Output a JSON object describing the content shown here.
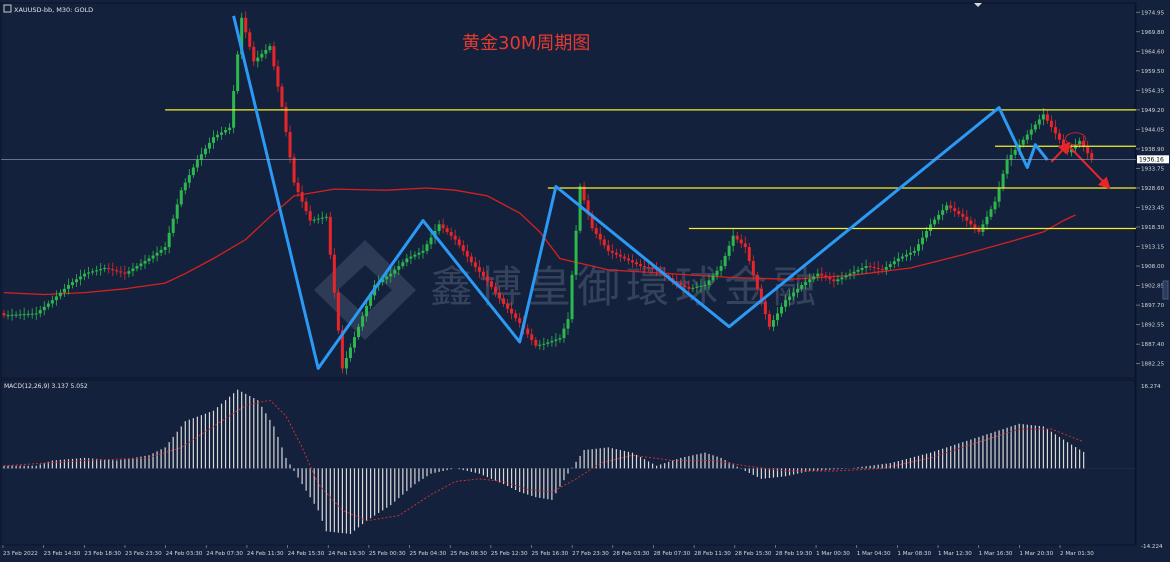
{
  "header": {
    "symbol": "XAUUSD-bb, M30:  GOLD",
    "chart_title": "黄金30M周期图"
  },
  "watermark": "鑫博皇御環球金融",
  "colors": {
    "background": "#14213d",
    "bull": "#2db84d",
    "bear": "#e8262a",
    "ma": "#d8201f",
    "level": "#f4ef2c",
    "zigzag": "#2b9af5",
    "title": "#e43a2f",
    "macd_hist": "#d8d8d8",
    "macd_signal": "#e03030"
  },
  "chart_data": [
    {
      "type": "candlestick",
      "symbol": "XAUUSD-bb",
      "timeframe": "M30",
      "title": "黄金30M周期图",
      "y_ticks": [
        "1974.95",
        "1969.80",
        "1964.60",
        "1959.50",
        "1954.35",
        "1949.20",
        "1944.05",
        "1938.90",
        "1933.75",
        "1928.60",
        "1923.45",
        "1918.30",
        "1913.15",
        "1908.00",
        "1902.85",
        "1897.70",
        "1892.55",
        "1887.40",
        "1882.25"
      ],
      "ylim": [
        1879.0,
        1976.6
      ],
      "x_ticks": [
        "23 Feb 2022",
        "23 Feb 14:30",
        "23 Feb 18:30",
        "23 Feb 23:30",
        "24 Feb 03:30",
        "24 Feb 07:30",
        "24 Feb 11:30",
        "24 Feb 15:30",
        "24 Feb 19:30",
        "25 Feb 00:30",
        "25 Feb 04:30",
        "25 Feb 08:30",
        "25 Feb 12:30",
        "25 Feb 16:30",
        "27 Feb 23:30",
        "28 Feb 03:30",
        "28 Feb 07:30",
        "28 Feb 11:30",
        "28 Feb 15:30",
        "28 Feb 19:30",
        "1 Mar 00:30",
        "1 Mar 04:30",
        "1 Mar 08:30",
        "1 Mar 12:30",
        "1 Mar 16:30",
        "1 Mar 20:30",
        "2 Mar 01:30"
      ],
      "current_price": "1936.16",
      "price_path": [
        {
          "x": 0,
          "price": 1895.0
        },
        {
          "x": 8,
          "price": 1895.5
        },
        {
          "x": 12,
          "price": 1899.0
        },
        {
          "x": 16,
          "price": 1903.0
        },
        {
          "x": 20,
          "price": 1906.0
        },
        {
          "x": 25,
          "price": 1907.5
        },
        {
          "x": 30,
          "price": 1906.0
        },
        {
          "x": 36,
          "price": 1910.0
        },
        {
          "x": 40,
          "price": 1913.0
        },
        {
          "x": 44,
          "price": 1928.0
        },
        {
          "x": 48,
          "price": 1936.0
        },
        {
          "x": 52,
          "price": 1942.0
        },
        {
          "x": 56,
          "price": 1944.5
        },
        {
          "x": 59,
          "price": 1973.5
        },
        {
          "x": 62,
          "price": 1962.0
        },
        {
          "x": 66,
          "price": 1966.0
        },
        {
          "x": 69,
          "price": 1950.0
        },
        {
          "x": 72,
          "price": 1930.0
        },
        {
          "x": 76,
          "price": 1920.0
        },
        {
          "x": 80,
          "price": 1921.0
        },
        {
          "x": 84,
          "price": 1881.0
        },
        {
          "x": 88,
          "price": 1892.0
        },
        {
          "x": 92,
          "price": 1903.0
        },
        {
          "x": 96,
          "price": 1906.0
        },
        {
          "x": 100,
          "price": 1910.0
        },
        {
          "x": 104,
          "price": 1912.0
        },
        {
          "x": 108,
          "price": 1919.0
        },
        {
          "x": 112,
          "price": 1915.0
        },
        {
          "x": 116,
          "price": 1909.0
        },
        {
          "x": 120,
          "price": 1904.0
        },
        {
          "x": 124,
          "price": 1898.0
        },
        {
          "x": 128,
          "price": 1893.0
        },
        {
          "x": 132,
          "price": 1887.0
        },
        {
          "x": 134,
          "price": 1887.5
        },
        {
          "x": 138,
          "price": 1889.0
        },
        {
          "x": 140,
          "price": 1894.0
        },
        {
          "x": 143,
          "price": 1929.0
        },
        {
          "x": 146,
          "price": 1918.0
        },
        {
          "x": 150,
          "price": 1912.0
        },
        {
          "x": 154,
          "price": 1910.0
        },
        {
          "x": 158,
          "price": 1908.0
        },
        {
          "x": 162,
          "price": 1907.0
        },
        {
          "x": 166,
          "price": 1904.0
        },
        {
          "x": 170,
          "price": 1902.0
        },
        {
          "x": 174,
          "price": 1903.0
        },
        {
          "x": 178,
          "price": 1908.0
        },
        {
          "x": 181,
          "price": 1916.0
        },
        {
          "x": 184,
          "price": 1913.0
        },
        {
          "x": 187,
          "price": 1902.0
        },
        {
          "x": 190,
          "price": 1892.0
        },
        {
          "x": 194,
          "price": 1899.0
        },
        {
          "x": 198,
          "price": 1903.0
        },
        {
          "x": 202,
          "price": 1906.0
        },
        {
          "x": 206,
          "price": 1904.0
        },
        {
          "x": 210,
          "price": 1906.0
        },
        {
          "x": 214,
          "price": 1908.0
        },
        {
          "x": 218,
          "price": 1907.0
        },
        {
          "x": 222,
          "price": 1910.0
        },
        {
          "x": 226,
          "price": 1912.0
        },
        {
          "x": 230,
          "price": 1919.0
        },
        {
          "x": 234,
          "price": 1924.0
        },
        {
          "x": 238,
          "price": 1921.0
        },
        {
          "x": 242,
          "price": 1917.0
        },
        {
          "x": 246,
          "price": 1925.0
        },
        {
          "x": 249,
          "price": 1936.0
        },
        {
          "x": 252,
          "price": 1940.0
        },
        {
          "x": 255,
          "price": 1944.0
        },
        {
          "x": 258,
          "price": 1948.0
        },
        {
          "x": 261,
          "price": 1943.0
        },
        {
          "x": 264,
          "price": 1938.0
        },
        {
          "x": 267,
          "price": 1941.0
        },
        {
          "x": 270,
          "price": 1936.16
        }
      ],
      "moving_average": [
        {
          "x": 0,
          "price": 1901.0
        },
        {
          "x": 10,
          "price": 1900.5
        },
        {
          "x": 20,
          "price": 1901.0
        },
        {
          "x": 30,
          "price": 1902.0
        },
        {
          "x": 40,
          "price": 1903.5
        },
        {
          "x": 45,
          "price": 1906.0
        },
        {
          "x": 52,
          "price": 1910.0
        },
        {
          "x": 60,
          "price": 1915.0
        },
        {
          "x": 66,
          "price": 1921.0
        },
        {
          "x": 72,
          "price": 1926.5
        },
        {
          "x": 82,
          "price": 1928.3
        },
        {
          "x": 95,
          "price": 1928.0
        },
        {
          "x": 105,
          "price": 1928.6
        },
        {
          "x": 112,
          "price": 1928.0
        },
        {
          "x": 120,
          "price": 1926.5
        },
        {
          "x": 128,
          "price": 1922.0
        },
        {
          "x": 133,
          "price": 1917.0
        },
        {
          "x": 138,
          "price": 1910.0
        },
        {
          "x": 150,
          "price": 1907.0
        },
        {
          "x": 165,
          "price": 1906.0
        },
        {
          "x": 180,
          "price": 1905.0
        },
        {
          "x": 195,
          "price": 1904.5
        },
        {
          "x": 210,
          "price": 1905.5
        },
        {
          "x": 225,
          "price": 1907.5
        },
        {
          "x": 238,
          "price": 1911.0
        },
        {
          "x": 250,
          "price": 1914.5
        },
        {
          "x": 258,
          "price": 1917.0
        },
        {
          "x": 263,
          "price": 1920.0
        },
        {
          "x": 266,
          "price": 1921.5
        }
      ],
      "horizontal_levels": [
        {
          "price": 1949.2,
          "from_x": 40
        },
        {
          "price": 1939.6,
          "from_x": 246
        },
        {
          "price": 1928.6,
          "from_x": 135
        },
        {
          "price": 1917.9,
          "from_x": 170
        }
      ],
      "zigzag": [
        {
          "x": 57,
          "price": 1974.0
        },
        {
          "x": 78,
          "price": 1881.0
        },
        {
          "x": 104,
          "price": 1920.0
        },
        {
          "x": 128,
          "price": 1888.0
        },
        {
          "x": 137,
          "price": 1929.0
        },
        {
          "x": 180,
          "price": 1892.0
        },
        {
          "x": 247,
          "price": 1949.8
        },
        {
          "x": 254,
          "price": 1934.0
        },
        {
          "x": 256,
          "price": 1940.0
        },
        {
          "x": 259,
          "price": 1936.0
        }
      ],
      "forecast_arrows": [
        {
          "from": {
            "x": 260,
            "price": 1935.5
          },
          "to": {
            "x": 264,
            "price": 1940.0
          }
        },
        {
          "from": {
            "x": 264,
            "price": 1940.0
          },
          "to": {
            "x": 274,
            "price": 1929.0
          }
        }
      ]
    },
    {
      "type": "bar",
      "name": "MACD",
      "label": "MACD(12,26,9) 3.137 5.052",
      "y_ticks": [
        "16.274",
        "-14.224"
      ],
      "ylim": [
        -14.224,
        16.274
      ],
      "histogram": [
        {
          "x": 0,
          "value": 0.5
        },
        {
          "x": 8,
          "value": 0.5
        },
        {
          "x": 12,
          "value": 1.5
        },
        {
          "x": 20,
          "value": 2.0
        },
        {
          "x": 28,
          "value": 1.5
        },
        {
          "x": 36,
          "value": 2.5
        },
        {
          "x": 40,
          "value": 4.0
        },
        {
          "x": 45,
          "value": 9.0
        },
        {
          "x": 52,
          "value": 11.0
        },
        {
          "x": 58,
          "value": 15.0
        },
        {
          "x": 63,
          "value": 13.0
        },
        {
          "x": 67,
          "value": 8.0
        },
        {
          "x": 70,
          "value": 2.0
        },
        {
          "x": 74,
          "value": -3.0
        },
        {
          "x": 78,
          "value": -8.0
        },
        {
          "x": 80,
          "value": -12.0
        },
        {
          "x": 86,
          "value": -12.5
        },
        {
          "x": 90,
          "value": -10.0
        },
        {
          "x": 96,
          "value": -7.0
        },
        {
          "x": 102,
          "value": -3.0
        },
        {
          "x": 106,
          "value": -1.0
        },
        {
          "x": 112,
          "value": 0.0
        },
        {
          "x": 118,
          "value": -1.0
        },
        {
          "x": 124,
          "value": -3.0
        },
        {
          "x": 128,
          "value": -4.5
        },
        {
          "x": 132,
          "value": -5.5
        },
        {
          "x": 136,
          "value": -6.0
        },
        {
          "x": 140,
          "value": -1.0
        },
        {
          "x": 144,
          "value": 3.5
        },
        {
          "x": 150,
          "value": 4.0
        },
        {
          "x": 156,
          "value": 3.0
        },
        {
          "x": 162,
          "value": 0.5
        },
        {
          "x": 168,
          "value": 2.0
        },
        {
          "x": 174,
          "value": 3.0
        },
        {
          "x": 178,
          "value": 2.0
        },
        {
          "x": 184,
          "value": -0.5
        },
        {
          "x": 188,
          "value": -2.0
        },
        {
          "x": 194,
          "value": -1.5
        },
        {
          "x": 200,
          "value": -0.5
        },
        {
          "x": 210,
          "value": 0.0
        },
        {
          "x": 220,
          "value": 1.0
        },
        {
          "x": 230,
          "value": 3.0
        },
        {
          "x": 238,
          "value": 5.0
        },
        {
          "x": 246,
          "value": 7.0
        },
        {
          "x": 252,
          "value": 8.5
        },
        {
          "x": 258,
          "value": 8.0
        },
        {
          "x": 264,
          "value": 5.0
        },
        {
          "x": 268,
          "value": 3.137
        }
      ],
      "signal": [
        {
          "x": 0,
          "value": 0.5
        },
        {
          "x": 20,
          "value": 1.5
        },
        {
          "x": 36,
          "value": 2.0
        },
        {
          "x": 44,
          "value": 4.0
        },
        {
          "x": 52,
          "value": 8.0
        },
        {
          "x": 60,
          "value": 12.0
        },
        {
          "x": 66,
          "value": 13.0
        },
        {
          "x": 70,
          "value": 10.0
        },
        {
          "x": 74,
          "value": 4.0
        },
        {
          "x": 78,
          "value": -3.0
        },
        {
          "x": 84,
          "value": -8.0
        },
        {
          "x": 90,
          "value": -10.0
        },
        {
          "x": 98,
          "value": -9.0
        },
        {
          "x": 106,
          "value": -5.0
        },
        {
          "x": 112,
          "value": -2.5
        },
        {
          "x": 118,
          "value": -2.0
        },
        {
          "x": 124,
          "value": -2.5
        },
        {
          "x": 130,
          "value": -4.0
        },
        {
          "x": 136,
          "value": -4.5
        },
        {
          "x": 142,
          "value": -2.0
        },
        {
          "x": 148,
          "value": 1.0
        },
        {
          "x": 156,
          "value": 2.5
        },
        {
          "x": 166,
          "value": 1.5
        },
        {
          "x": 176,
          "value": 1.5
        },
        {
          "x": 184,
          "value": 0.5
        },
        {
          "x": 194,
          "value": -0.5
        },
        {
          "x": 206,
          "value": -0.5
        },
        {
          "x": 218,
          "value": 0.0
        },
        {
          "x": 230,
          "value": 2.0
        },
        {
          "x": 242,
          "value": 5.0
        },
        {
          "x": 252,
          "value": 7.5
        },
        {
          "x": 260,
          "value": 7.5
        },
        {
          "x": 268,
          "value": 5.052
        }
      ]
    }
  ]
}
